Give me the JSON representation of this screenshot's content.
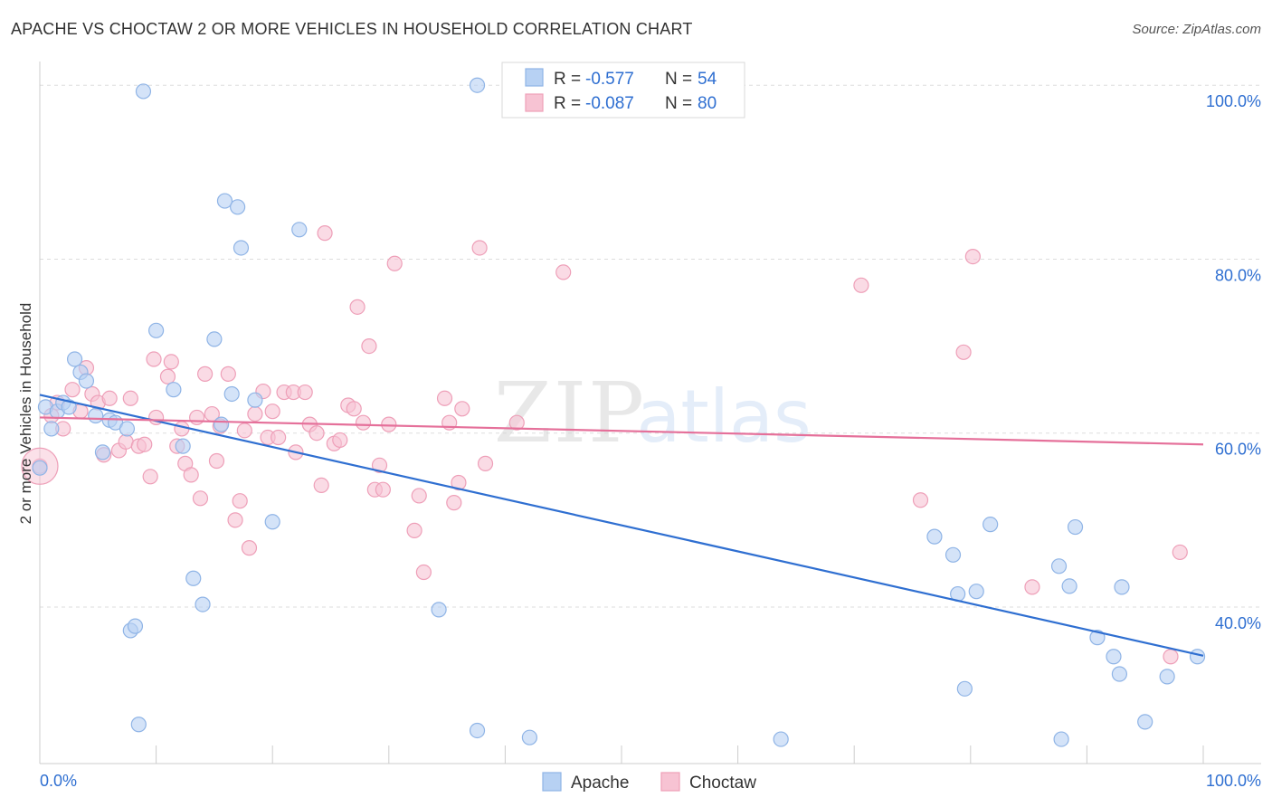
{
  "chart_data": {
    "type": "scatter",
    "title": "APACHE VS CHOCTAW 2 OR MORE VEHICLES IN HOUSEHOLD CORRELATION CHART",
    "source": "Source: ZipAtlas.com",
    "xlabel": "",
    "ylabel": "2 or more Vehicles in Household",
    "xlim": [
      0,
      100
    ],
    "ylim": [
      22,
      102
    ],
    "x_tick_labels": [
      "0.0%",
      "100.0%"
    ],
    "y_ticks": [
      40,
      60,
      80,
      100
    ],
    "y_tick_labels": [
      "40.0%",
      "60.0%",
      "80.0%",
      "100.0%"
    ],
    "grid": true,
    "legend_position": "top-center",
    "watermark": "ZIPatlas",
    "colors": {
      "apache_fill": "#b7d1f3",
      "apache_stroke": "#8fb4e6",
      "apache_line": "#2f6fd1",
      "choctaw_fill": "#f7c3d3",
      "choctaw_stroke": "#ee9fb8",
      "choctaw_line": "#e5709a",
      "value_text": "#2f6fd1",
      "grid": "#dddddd"
    },
    "series": [
      {
        "name": "Apache",
        "r_label": "R =",
        "r_value": "-0.577",
        "n_label": "N =",
        "n_value": "54",
        "trend": [
          [
            0,
            64.4
          ],
          [
            100,
            34.4
          ]
        ],
        "points": [
          [
            0.0,
            56.0
          ],
          [
            0.5,
            63.0
          ],
          [
            1.0,
            60.5
          ],
          [
            1.5,
            62.5
          ],
          [
            2.0,
            63.5
          ],
          [
            2.5,
            63.0
          ],
          [
            3.0,
            68.5
          ],
          [
            3.5,
            67.0
          ],
          [
            4.0,
            66.0
          ],
          [
            4.8,
            62.0
          ],
          [
            5.4,
            57.8
          ],
          [
            6.0,
            61.5
          ],
          [
            6.5,
            61.2
          ],
          [
            7.5,
            60.5
          ],
          [
            7.8,
            37.3
          ],
          [
            8.2,
            37.8
          ],
          [
            8.5,
            26.5
          ],
          [
            8.9,
            99.3
          ],
          [
            10.0,
            71.8
          ],
          [
            11.5,
            65.0
          ],
          [
            12.3,
            58.5
          ],
          [
            13.2,
            43.3
          ],
          [
            14.0,
            40.3
          ],
          [
            15.0,
            70.8
          ],
          [
            15.6,
            61.0
          ],
          [
            15.9,
            86.7
          ],
          [
            16.5,
            64.5
          ],
          [
            17.0,
            86.0
          ],
          [
            17.3,
            81.3
          ],
          [
            18.5,
            63.8
          ],
          [
            20.0,
            49.8
          ],
          [
            22.3,
            83.4
          ],
          [
            34.3,
            39.7
          ],
          [
            37.6,
            100.0
          ],
          [
            37.6,
            25.8
          ],
          [
            42.1,
            25.0
          ],
          [
            63.7,
            24.8
          ],
          [
            76.9,
            48.1
          ],
          [
            78.5,
            46.0
          ],
          [
            78.9,
            41.5
          ],
          [
            79.5,
            30.6
          ],
          [
            80.5,
            41.8
          ],
          [
            81.7,
            49.5
          ],
          [
            87.6,
            44.7
          ],
          [
            87.8,
            24.8
          ],
          [
            88.5,
            42.4
          ],
          [
            89.0,
            49.2
          ],
          [
            90.9,
            36.5
          ],
          [
            92.3,
            34.3
          ],
          [
            92.8,
            32.3
          ],
          [
            93.0,
            42.3
          ],
          [
            95.0,
            26.8
          ],
          [
            96.9,
            32.0
          ],
          [
            99.5,
            34.3
          ]
        ]
      },
      {
        "name": "Choctaw",
        "r_label": "R =",
        "r_value": "-0.087",
        "n_label": "N =",
        "n_value": "80",
        "trend": [
          [
            0,
            61.8
          ],
          [
            100,
            58.7
          ]
        ],
        "points": [
          [
            0.0,
            56.2
          ],
          [
            1.0,
            62.0
          ],
          [
            1.5,
            63.5
          ],
          [
            2.0,
            60.5
          ],
          [
            2.8,
            65.0
          ],
          [
            3.5,
            62.5
          ],
          [
            4.0,
            67.5
          ],
          [
            4.5,
            64.5
          ],
          [
            5.0,
            63.5
          ],
          [
            5.5,
            57.5
          ],
          [
            6.0,
            64.0
          ],
          [
            6.8,
            58.0
          ],
          [
            7.4,
            59.0
          ],
          [
            7.8,
            64.0
          ],
          [
            8.5,
            58.5
          ],
          [
            9.0,
            58.7
          ],
          [
            9.5,
            55.0
          ],
          [
            9.8,
            68.5
          ],
          [
            10.0,
            61.8
          ],
          [
            11.0,
            66.5
          ],
          [
            11.3,
            68.2
          ],
          [
            11.8,
            58.5
          ],
          [
            12.2,
            60.5
          ],
          [
            12.5,
            56.5
          ],
          [
            13.0,
            55.2
          ],
          [
            13.5,
            61.8
          ],
          [
            13.8,
            52.5
          ],
          [
            14.2,
            66.8
          ],
          [
            14.8,
            62.2
          ],
          [
            15.2,
            56.8
          ],
          [
            15.5,
            60.8
          ],
          [
            16.2,
            66.8
          ],
          [
            16.8,
            50.0
          ],
          [
            17.2,
            52.2
          ],
          [
            17.6,
            60.3
          ],
          [
            18.0,
            46.8
          ],
          [
            18.5,
            62.2
          ],
          [
            19.2,
            64.8
          ],
          [
            19.6,
            59.5
          ],
          [
            20.0,
            62.5
          ],
          [
            20.5,
            59.5
          ],
          [
            21.0,
            64.7
          ],
          [
            21.8,
            64.7
          ],
          [
            22.0,
            57.8
          ],
          [
            22.8,
            64.7
          ],
          [
            23.2,
            61.0
          ],
          [
            23.8,
            60.0
          ],
          [
            24.2,
            54.0
          ],
          [
            24.5,
            83.0
          ],
          [
            25.3,
            58.8
          ],
          [
            25.8,
            59.2
          ],
          [
            26.5,
            63.2
          ],
          [
            27.0,
            62.8
          ],
          [
            27.3,
            74.5
          ],
          [
            27.8,
            61.2
          ],
          [
            28.3,
            70.0
          ],
          [
            28.8,
            53.5
          ],
          [
            29.2,
            56.3
          ],
          [
            29.5,
            53.5
          ],
          [
            30.0,
            61.0
          ],
          [
            30.5,
            79.5
          ],
          [
            32.2,
            48.8
          ],
          [
            32.6,
            52.8
          ],
          [
            33.0,
            44.0
          ],
          [
            34.8,
            64.0
          ],
          [
            35.2,
            61.2
          ],
          [
            35.6,
            52.0
          ],
          [
            36.0,
            54.3
          ],
          [
            36.3,
            62.8
          ],
          [
            37.8,
            81.3
          ],
          [
            38.3,
            56.5
          ],
          [
            41.0,
            61.2
          ],
          [
            45.0,
            78.5
          ],
          [
            70.6,
            77.0
          ],
          [
            75.7,
            52.3
          ],
          [
            79.4,
            69.3
          ],
          [
            80.2,
            80.3
          ],
          [
            85.3,
            42.3
          ],
          [
            97.2,
            34.3
          ],
          [
            98.0,
            46.3
          ]
        ]
      }
    ]
  }
}
